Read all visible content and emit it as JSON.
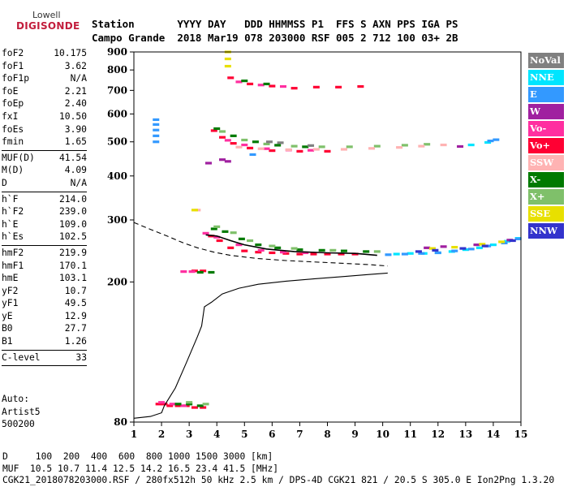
{
  "logo": {
    "top": "Lowell",
    "main": "DIGISONDE"
  },
  "header": {
    "row1": "Station       YYYY DAY   DDD HHMMSS P1  FFS S AXN PPS IGA PS",
    "row2": "Campo Grande  2018 Mar19 078 203000 RSF 005 2 712 100 03+ 2B"
  },
  "params": [
    {
      "label": "foF2",
      "value": "10.175"
    },
    {
      "label": "foF1",
      "value": "3.62"
    },
    {
      "label": "foF1p",
      "value": "N/A"
    },
    {
      "label": "foE",
      "value": "2.21"
    },
    {
      "label": "foEp",
      "value": "2.40"
    },
    {
      "label": "fxI",
      "value": "10.50"
    },
    {
      "label": "foEs",
      "value": "3.90"
    },
    {
      "label": "fmin",
      "value": "1.65"
    },
    {
      "sep": true
    },
    {
      "label": "MUF(D)",
      "value": "41.54"
    },
    {
      "label": "M(D)",
      "value": "4.09"
    },
    {
      "label": "D",
      "value": "N/A"
    },
    {
      "sep": true
    },
    {
      "label": "h`F",
      "value": "214.0"
    },
    {
      "label": "h`F2",
      "value": "239.0"
    },
    {
      "label": "h`E",
      "value": "109.0"
    },
    {
      "label": "h`Es",
      "value": "102.5"
    },
    {
      "sep": true
    },
    {
      "label": "hmF2",
      "value": "219.9"
    },
    {
      "label": "hmF1",
      "value": "170.1"
    },
    {
      "label": "hmE",
      "value": "103.1"
    },
    {
      "label": "yF2",
      "value": "10.7"
    },
    {
      "label": "yF1",
      "value": "49.5"
    },
    {
      "label": "yE",
      "value": "12.9"
    },
    {
      "label": "B0",
      "value": "27.7"
    },
    {
      "label": "B1",
      "value": "1.26"
    },
    {
      "sep": true
    },
    {
      "label": "C-level",
      "value": "33"
    },
    {
      "sep": true
    }
  ],
  "auto": {
    "line1": "Auto:",
    "line2": "Artist5",
    "line3": "500200"
  },
  "footer": {
    "line1": "D     100  200  400  600  800 1000 1500 3000 [km]",
    "line2": "MUF  10.5 10.7 11.4 12.5 14.2 16.5 23.4 41.5 [MHz]",
    "line3": "CGK21_2018078203000.RSF / 280fx512h 50 kHz 2.5 km / DPS-4D CGK21 821 / 20.5 S 305.0 E Ion2Png 1.3.20"
  },
  "legend": [
    {
      "label": "NoVal",
      "color": "#808080"
    },
    {
      "label": "NNE",
      "color": "#00e5ff"
    },
    {
      "label": "E",
      "color": "#3399ff"
    },
    {
      "label": "W",
      "color": "#a020a0"
    },
    {
      "label": "Vo-",
      "color": "#ff2fa0"
    },
    {
      "label": "Vo+",
      "color": "#ff0033"
    },
    {
      "label": "SSW",
      "color": "#ffb3b3"
    },
    {
      "label": "X-",
      "color": "#007a00"
    },
    {
      "label": "X+",
      "color": "#7fc06a"
    },
    {
      "label": "SSE",
      "color": "#e8e000"
    },
    {
      "label": "NNW",
      "color": "#3333cc"
    }
  ],
  "chart_data": {
    "type": "scatter",
    "title": "",
    "xlabel": "",
    "ylabel": "",
    "xlim": [
      1,
      15
    ],
    "ylim": [
      80,
      900
    ],
    "x_ticks": [
      1,
      2,
      3,
      4,
      5,
      6,
      7,
      8,
      9,
      10,
      11,
      12,
      13,
      14,
      15
    ],
    "y_ticks": [
      80,
      200,
      300,
      400,
      500,
      600,
      700,
      800,
      900
    ],
    "y_scale": "log",
    "grid": false,
    "legend_position": "right",
    "series": [
      {
        "name": "Vo+",
        "color": "#ff0033",
        "points": [
          [
            1.9,
            90
          ],
          [
            2.1,
            90
          ],
          [
            2.3,
            89
          ],
          [
            2.6,
            89
          ],
          [
            2.9,
            89
          ],
          [
            3.2,
            88
          ],
          [
            3.5,
            88
          ],
          [
            3.8,
            270
          ],
          [
            4.1,
            262
          ],
          [
            4.5,
            250
          ],
          [
            5,
            245
          ],
          [
            5.5,
            243
          ],
          [
            6,
            242
          ],
          [
            6.5,
            241
          ],
          [
            7,
            240
          ],
          [
            7.5,
            240
          ],
          [
            8,
            240
          ],
          [
            8.5,
            240
          ],
          [
            9,
            240
          ],
          [
            3.9,
            538
          ],
          [
            4.2,
            515
          ],
          [
            4.6,
            495
          ],
          [
            5.2,
            480
          ],
          [
            6,
            472
          ],
          [
            7,
            470
          ],
          [
            8,
            470
          ],
          [
            3.2,
            215
          ],
          [
            3.5,
            215
          ],
          [
            4.5,
            760
          ],
          [
            5.2,
            730
          ],
          [
            6,
            720
          ],
          [
            6.8,
            710
          ],
          [
            7.6,
            715
          ],
          [
            8.4,
            715
          ],
          [
            9.2,
            718
          ]
        ]
      },
      {
        "name": "Vo-",
        "color": "#ff2fa0",
        "points": [
          [
            2.0,
            91
          ],
          [
            2.4,
            90
          ],
          [
            2.8,
            89
          ],
          [
            3.6,
            275
          ],
          [
            4,
            268
          ],
          [
            4.8,
            255
          ],
          [
            5.6,
            246
          ],
          [
            6.4,
            243
          ],
          [
            7.2,
            242
          ],
          [
            4.4,
            505
          ],
          [
            5,
            490
          ],
          [
            5.8,
            478
          ],
          [
            6.6,
            474
          ],
          [
            7.4,
            473
          ],
          [
            2.8,
            214
          ],
          [
            3.1,
            214
          ],
          [
            4.8,
            740
          ],
          [
            5.6,
            725
          ],
          [
            6.4,
            718
          ]
        ]
      },
      {
        "name": "X-",
        "color": "#007a00",
        "points": [
          [
            2.6,
            90
          ],
          [
            3.0,
            90
          ],
          [
            3.4,
            89
          ],
          [
            3.9,
            283
          ],
          [
            4.3,
            278
          ],
          [
            4.9,
            265
          ],
          [
            5.5,
            255
          ],
          [
            6.2,
            250
          ],
          [
            7,
            247
          ],
          [
            7.8,
            246
          ],
          [
            8.6,
            245
          ],
          [
            9.4,
            244
          ],
          [
            4,
            545
          ],
          [
            4.6,
            520
          ],
          [
            5.4,
            500
          ],
          [
            6.2,
            489
          ],
          [
            7.2,
            484
          ],
          [
            3.4,
            213
          ],
          [
            3.8,
            213
          ],
          [
            5,
            745
          ],
          [
            5.8,
            730
          ]
        ]
      },
      {
        "name": "X+",
        "color": "#7fc06a",
        "points": [
          [
            3.0,
            91
          ],
          [
            3.6,
            90
          ],
          [
            4.0,
            287
          ],
          [
            4.6,
            276
          ],
          [
            5.2,
            262
          ],
          [
            6,
            253
          ],
          [
            6.8,
            249
          ],
          [
            8.2,
            246
          ],
          [
            9.8,
            244
          ],
          [
            4.2,
            535
          ],
          [
            5,
            506
          ],
          [
            5.8,
            493
          ],
          [
            6.8,
            486
          ],
          [
            7.8,
            484
          ],
          [
            8.8,
            484
          ],
          [
            9.8,
            486
          ],
          [
            10.8,
            489
          ],
          [
            11.6,
            492
          ]
        ]
      },
      {
        "name": "NNE",
        "color": "#00e5ff",
        "points": [
          [
            10.5,
            240
          ],
          [
            11,
            241
          ],
          [
            11.5,
            241
          ],
          [
            12,
            242
          ],
          [
            12.5,
            244
          ],
          [
            13,
            247
          ],
          [
            13.5,
            250
          ],
          [
            14,
            255
          ],
          [
            14.5,
            261
          ],
          [
            14.9,
            266
          ],
          [
            13.2,
            490
          ],
          [
            13.8,
            498
          ]
        ]
      },
      {
        "name": "E",
        "color": "#3399ff",
        "points": [
          [
            1.8,
            500
          ],
          [
            1.8,
            520
          ],
          [
            1.8,
            540
          ],
          [
            1.8,
            560
          ],
          [
            1.8,
            578
          ],
          [
            10.2,
            239
          ],
          [
            10.8,
            240
          ],
          [
            11.4,
            241
          ],
          [
            12,
            242
          ],
          [
            12.6,
            245
          ],
          [
            13.2,
            248
          ],
          [
            13.8,
            253
          ],
          [
            14.4,
            258
          ],
          [
            14.9,
            265
          ],
          [
            13.9,
            503
          ],
          [
            14.1,
            507
          ],
          [
            5.3,
            460
          ]
        ]
      },
      {
        "name": "W",
        "color": "#a020a0",
        "points": [
          [
            4.2,
            445
          ],
          [
            4.4,
            440
          ],
          [
            3.7,
            435
          ],
          [
            12.8,
            485
          ],
          [
            11.6,
            250
          ],
          [
            12.2,
            252
          ],
          [
            13.4,
            255
          ],
          [
            14.6,
            263
          ]
        ]
      },
      {
        "name": "SSW",
        "color": "#ffb3b3",
        "points": [
          [
            4.8,
            483
          ],
          [
            5.6,
            478
          ],
          [
            6.6,
            475
          ],
          [
            7.6,
            476
          ],
          [
            8.6,
            476
          ],
          [
            9.6,
            479
          ],
          [
            10.6,
            482
          ],
          [
            11.4,
            486
          ],
          [
            12.2,
            490
          ],
          [
            3.3,
            320
          ]
        ]
      },
      {
        "name": "SSE",
        "color": "#e8e000",
        "points": [
          [
            4.4,
            900
          ],
          [
            4.4,
            860
          ],
          [
            4.4,
            820
          ],
          [
            11.8,
            249
          ],
          [
            12.6,
            251
          ],
          [
            13.6,
            256
          ],
          [
            14.3,
            260
          ],
          [
            3.2,
            320
          ]
        ]
      },
      {
        "name": "NNW",
        "color": "#3333cc",
        "points": [
          [
            11.3,
            244
          ],
          [
            11.9,
            246
          ],
          [
            12.9,
            249
          ],
          [
            13.7,
            253
          ],
          [
            14.7,
            262
          ]
        ]
      },
      {
        "name": "NoVal",
        "color": "#808080",
        "points": [
          [
            5.9,
            500
          ],
          [
            6.3,
            497
          ],
          [
            7.4,
            488
          ]
        ]
      }
    ],
    "profile_solid": [
      [
        1,
        82
      ],
      [
        1.6,
        83
      ],
      [
        2.0,
        85
      ],
      [
        2.1,
        89
      ],
      [
        2.5,
        100
      ],
      [
        2.9,
        118
      ],
      [
        3.3,
        140
      ],
      [
        3.45,
        150
      ],
      [
        3.55,
        170
      ],
      [
        3.8,
        175
      ],
      [
        4.2,
        185
      ],
      [
        4.8,
        192
      ],
      [
        5.5,
        197
      ],
      [
        6.5,
        201
      ],
      [
        7.5,
        204
      ],
      [
        8.5,
        207
      ],
      [
        9.5,
        210
      ],
      [
        10.18,
        212
      ]
    ],
    "profile_dashed": [
      [
        1,
        295
      ],
      [
        1.6,
        282
      ],
      [
        2.2,
        270
      ],
      [
        2.8,
        258
      ],
      [
        3.3,
        250
      ],
      [
        3.9,
        243
      ],
      [
        4.5,
        238
      ],
      [
        5.5,
        233
      ],
      [
        6.5,
        230
      ],
      [
        7.5,
        228
      ],
      [
        8.5,
        226
      ],
      [
        9.5,
        224
      ],
      [
        10.18,
        222
      ]
    ],
    "trace_black": [
      [
        3.6,
        272
      ],
      [
        4,
        270
      ],
      [
        4.5,
        262
      ],
      [
        5,
        255
      ],
      [
        5.8,
        248
      ],
      [
        6.8,
        244
      ],
      [
        8,
        242
      ],
      [
        9,
        241
      ],
      [
        9.8,
        238
      ]
    ]
  }
}
